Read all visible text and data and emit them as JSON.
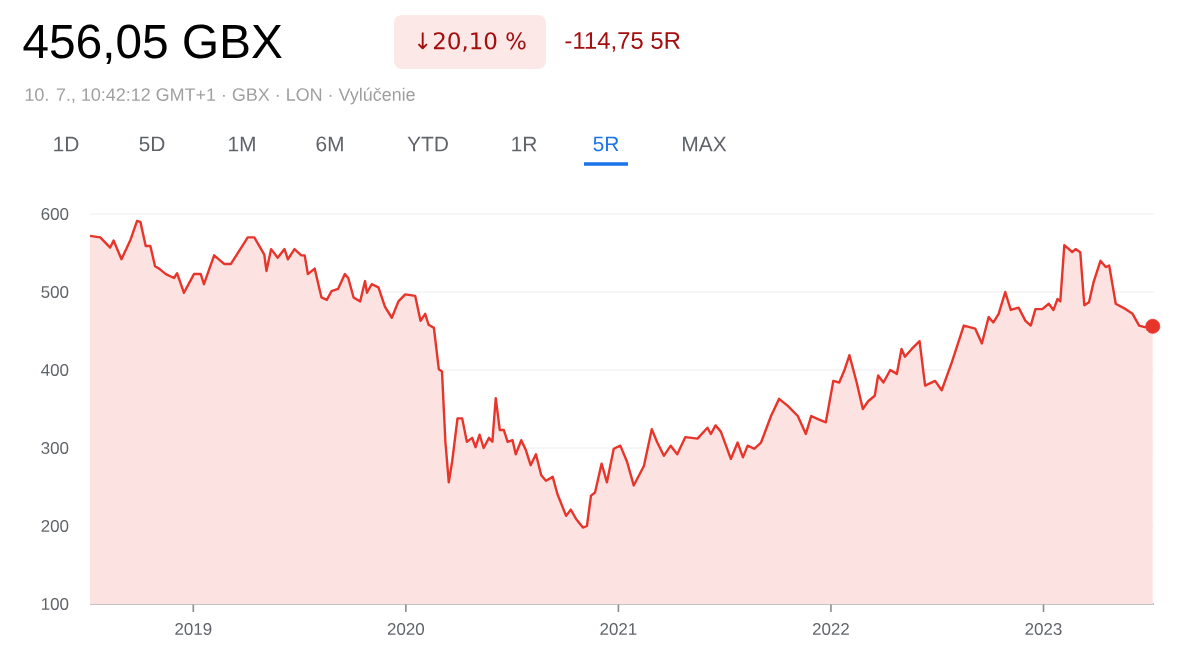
{
  "chart_data": {
    "type": "area",
    "title": "456,05 GBX",
    "subtitle": "10. 7., 10:42:12 GMT+1 · GBX · LON · Vylúčenie",
    "annotations": [
      "↓20,10 %",
      "-114,75 5R",
      "1D",
      "5D",
      "1M",
      "6M",
      "YTD",
      "1R",
      "5R",
      "MAX"
    ],
    "color": "#e8352b",
    "x": [
      2018.514,
      2018.562,
      2018.609,
      2018.625,
      2018.662,
      2018.703,
      2018.735,
      2018.751,
      2018.776,
      2018.798,
      2018.82,
      2018.839,
      2018.871,
      2018.909,
      2018.924,
      2018.956,
      2019.003,
      2019.035,
      2019.05,
      2019.098,
      2019.145,
      2019.177,
      2019.256,
      2019.287,
      2019.334,
      2019.344,
      2019.366,
      2019.397,
      2019.429,
      2019.445,
      2019.476,
      2019.508,
      2019.524,
      2019.539,
      2019.571,
      2019.603,
      2019.628,
      2019.65,
      2019.681,
      2019.713,
      2019.729,
      2019.754,
      2019.785,
      2019.808,
      2019.817,
      2019.839,
      2019.871,
      2019.902,
      2019.934,
      2019.965,
      2019.997,
      2020.044,
      2020.069,
      2020.091,
      2020.107,
      2020.132,
      2020.155,
      2020.17,
      2020.186,
      2020.202,
      2020.218,
      2020.243,
      2020.265,
      2020.287,
      2020.312,
      2020.328,
      2020.347,
      2020.366,
      2020.391,
      2020.407,
      2020.423,
      2020.442,
      2020.461,
      2020.479,
      2020.502,
      2020.517,
      2020.543,
      2020.565,
      2020.587,
      2020.612,
      2020.637,
      2020.659,
      2020.691,
      2020.713,
      2020.754,
      2020.776,
      2020.801,
      2020.833,
      2020.852,
      2020.871,
      2020.89,
      2020.921,
      2020.946,
      2020.978,
      2021.009,
      2021.041,
      2021.072,
      2021.12,
      2021.157,
      2021.183,
      2021.214,
      2021.246,
      2021.277,
      2021.315,
      2021.372,
      2021.419,
      2021.435,
      2021.457,
      2021.482,
      2021.529,
      2021.561,
      2021.586,
      2021.608,
      2021.639,
      2021.671,
      2021.718,
      2021.756,
      2021.797,
      2021.844,
      2021.882,
      2021.907,
      2021.939,
      2021.976,
      2022.011,
      2022.039,
      2022.065,
      2022.087,
      2022.121,
      2022.15,
      2022.175,
      2022.206,
      2022.222,
      2022.247,
      2022.279,
      2022.31,
      2022.332,
      2022.348,
      2022.38,
      2022.417,
      2022.443,
      2022.49,
      2022.521,
      2022.569,
      2022.625,
      2022.679,
      2022.71,
      2022.742,
      2022.764,
      2022.789,
      2022.82,
      2022.846,
      2022.883,
      2022.915,
      2022.94,
      2022.962,
      2022.994,
      2023.025,
      2023.047,
      2023.066,
      2023.079,
      2023.098,
      2023.12,
      2023.135,
      2023.151,
      2023.173,
      2023.192,
      2023.214,
      2023.236,
      2023.268,
      2023.293,
      2023.309,
      2023.34,
      2023.387,
      2023.419,
      2023.45,
      2023.476,
      2023.514
    ],
    "values": [
      572,
      570,
      557,
      566,
      542,
      566,
      591,
      590,
      559,
      559,
      533,
      530,
      523,
      518,
      524,
      499,
      523,
      523,
      510,
      547,
      536,
      536,
      570,
      570,
      548,
      527,
      555,
      544,
      555,
      542,
      555,
      547,
      547,
      523,
      530,
      493,
      490,
      501,
      504,
      523,
      518,
      493,
      488,
      514,
      499,
      510,
      506,
      481,
      467,
      488,
      497,
      495,
      463,
      472,
      458,
      454,
      401,
      398,
      308,
      256,
      283,
      338,
      338,
      308,
      313,
      301,
      317,
      300,
      313,
      308,
      364,
      323,
      323,
      308,
      310,
      292,
      310,
      297,
      278,
      292,
      265,
      258,
      263,
      241,
      213,
      221,
      209,
      198,
      200,
      239,
      243,
      280,
      256,
      299,
      303,
      282,
      252,
      277,
      324,
      307,
      290,
      303,
      292,
      314,
      312,
      326,
      318,
      329,
      321,
      286,
      307,
      288,
      303,
      299,
      307,
      341,
      363,
      354,
      341,
      318,
      341,
      337,
      333,
      386,
      384,
      401,
      419,
      384,
      350,
      360,
      367,
      393,
      384,
      400,
      395,
      427,
      417,
      427,
      437,
      380,
      386,
      374,
      410,
      457,
      453,
      434,
      468,
      461,
      472,
      500,
      477,
      480,
      463,
      457,
      478,
      478,
      485,
      477,
      491,
      488,
      560,
      555,
      551,
      555,
      551,
      483,
      487,
      513,
      540,
      532,
      534,
      485,
      478,
      472,
      457,
      455,
      456.05
    ],
    "xlim": [
      2018.514,
      2023.52
    ],
    "ylim": [
      100,
      600
    ],
    "xticks": [
      2019,
      2020,
      2021,
      2022,
      2023
    ],
    "yticks": [
      100,
      200,
      300,
      400,
      500,
      600
    ],
    "grid": "y"
  }
}
